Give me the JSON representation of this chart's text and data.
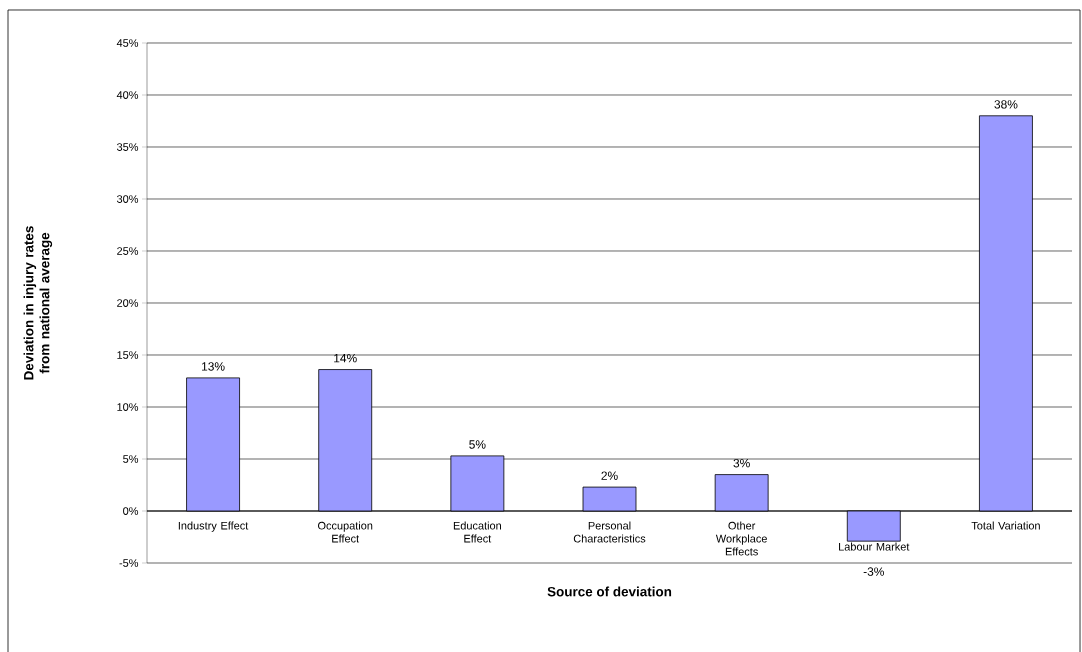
{
  "chart_data": {
    "type": "bar",
    "xlabel": "Source of deviation",
    "ylabel": "Deviation in injury rates from national average",
    "categories": [
      "Industry Effect",
      "Occupation Effect",
      "Education Effect",
      "Personal Characteristics",
      "Other Workplace Effects",
      "Labour Market",
      "Total Variation"
    ],
    "values": [
      12.8,
      13.6,
      5.3,
      2.3,
      3.5,
      -2.9,
      38.0
    ],
    "value_labels": [
      "13%",
      "14%",
      "5%",
      "2%",
      "3%",
      "-3%",
      "38%"
    ],
    "color": "#9999ff",
    "ylim": [
      -5,
      45
    ],
    "yticks": [
      {
        "value": -5,
        "label": "-5%"
      },
      {
        "value": 0,
        "label": "0%"
      },
      {
        "value": 5,
        "label": "5%"
      },
      {
        "value": 10,
        "label": "10%"
      },
      {
        "value": 15,
        "label": "15%"
      },
      {
        "value": 20,
        "label": "20%"
      },
      {
        "value": 25,
        "label": "25%"
      },
      {
        "value": 30,
        "label": "30%"
      },
      {
        "value": 35,
        "label": "35%"
      },
      {
        "value": 40,
        "label": "40%"
      },
      {
        "value": 45,
        "label": "45%"
      }
    ],
    "grid": "y",
    "legend": false
  }
}
